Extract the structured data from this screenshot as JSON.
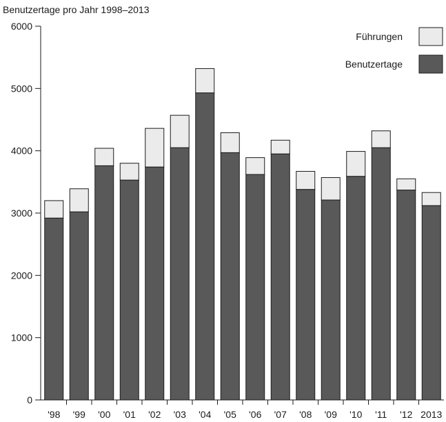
{
  "chart_data": {
    "type": "bar",
    "stacked": true,
    "title": "Benutzertage pro Jahr 1998–2013",
    "xlabel": "",
    "ylabel": "",
    "ylim": [
      0,
      6000
    ],
    "yticks": [
      0,
      1000,
      2000,
      3000,
      4000,
      5000,
      6000
    ],
    "grid": false,
    "legend_position": "top-right",
    "categories": [
      "'98",
      "'99",
      "'00",
      "'01",
      "'02",
      "'03",
      "'04",
      "'05",
      "'06",
      "'07",
      "'08",
      "'09",
      "'10",
      "'11",
      "'12",
      "2013"
    ],
    "series": [
      {
        "name": "Benutzertage",
        "color": "#595959",
        "values": [
          2920,
          3020,
          3760,
          3530,
          3740,
          4050,
          4930,
          3970,
          3620,
          3950,
          3380,
          3210,
          3590,
          4050,
          3370,
          3120
        ]
      },
      {
        "name": "Führungen",
        "color": "#ebebeb",
        "values": [
          280,
          370,
          280,
          270,
          620,
          520,
          390,
          320,
          270,
          220,
          290,
          360,
          400,
          270,
          180,
          210
        ]
      }
    ],
    "legend_order": [
      "Führungen",
      "Benutzertage"
    ]
  }
}
